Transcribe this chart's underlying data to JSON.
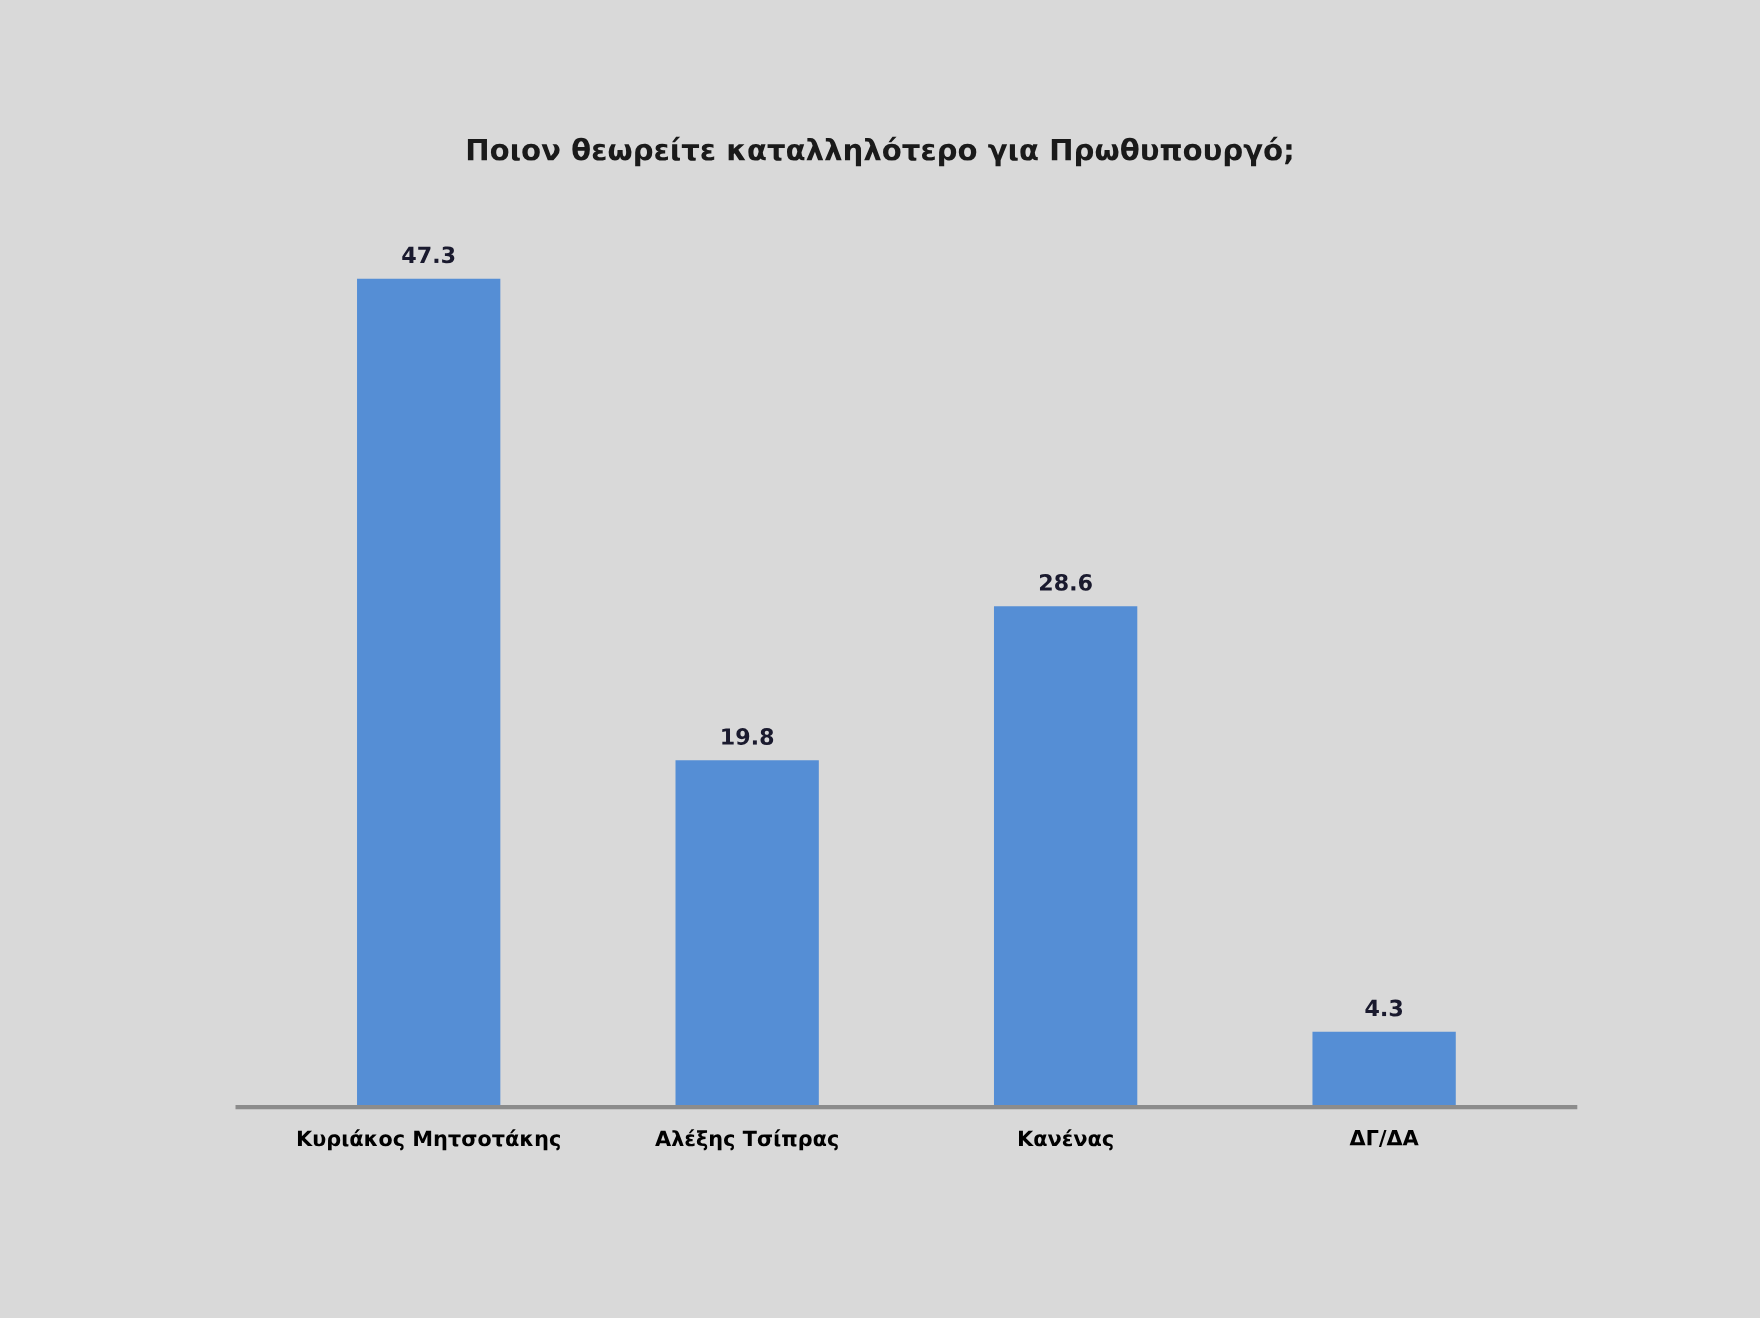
{
  "chart_data": {
    "type": "bar",
    "title": "Ποιον θεωρείτε καταλληλότερο για Πρωθυπουργό;",
    "categories": [
      "Κυριάκος Μητσοτάκης",
      "Αλέξης Τσίπρας",
      "Κανένας",
      "ΔΓ/ΔΑ"
    ],
    "values": [
      47.3,
      19.8,
      28.6,
      4.3
    ],
    "color": "#558ed5",
    "data_labels": true,
    "grid": false,
    "legend": false
  }
}
